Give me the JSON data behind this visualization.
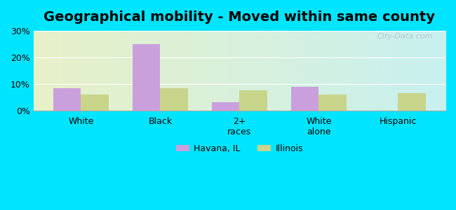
{
  "title": "Geographical mobility - Moved within same county",
  "categories": [
    "White",
    "Black",
    "2+\nraces",
    "White\nalone",
    "Hispanic"
  ],
  "havana_values": [
    8.5,
    25.0,
    3.0,
    9.0,
    0.0
  ],
  "illinois_values": [
    6.0,
    8.5,
    7.5,
    6.0,
    6.5
  ],
  "havana_color": "#c9a0dc",
  "illinois_color": "#c8d48a",
  "bar_width": 0.35,
  "ylim": [
    0,
    30
  ],
  "yticks": [
    0,
    10,
    20,
    30
  ],
  "ytick_labels": [
    "0%",
    "10%",
    "20%",
    "30%"
  ],
  "legend_labels": [
    "Havana, IL",
    "Illinois"
  ],
  "outer_bg": "#00e5ff",
  "title_fontsize": 14,
  "watermark": "City-Data.com"
}
